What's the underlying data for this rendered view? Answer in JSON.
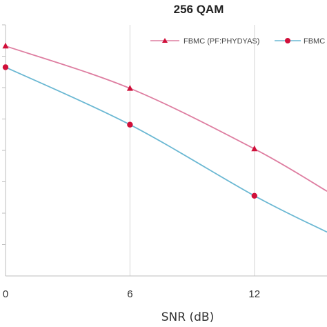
{
  "chart_data": {
    "type": "line",
    "title": "256 QAM",
    "xlabel": "SNR (dB)",
    "ylabel": "",
    "x_ticks": [
      "0",
      "6",
      "12"
    ],
    "xlim": [
      0,
      15.5
    ],
    "ylim": [
      0,
      8.3
    ],
    "grid": "vertical",
    "legend_position": "top-right",
    "series": [
      {
        "name": "FBMC (PF:PHYDYAS)",
        "marker": "triangle",
        "color": "#de7ea1",
        "marker_color": "#d0103a",
        "x": [
          0,
          6,
          12
        ],
        "values": [
          7.6,
          6.2,
          4.2
        ],
        "curve_end": [
          15.5,
          2.8
        ]
      },
      {
        "name": "FBMC",
        "marker": "circle",
        "color": "#6bb8d3",
        "marker_color": "#d0103a",
        "x": [
          0,
          6,
          12
        ],
        "values": [
          6.9,
          5.0,
          2.65
        ],
        "curve_end": [
          15.5,
          1.45
        ]
      }
    ]
  }
}
